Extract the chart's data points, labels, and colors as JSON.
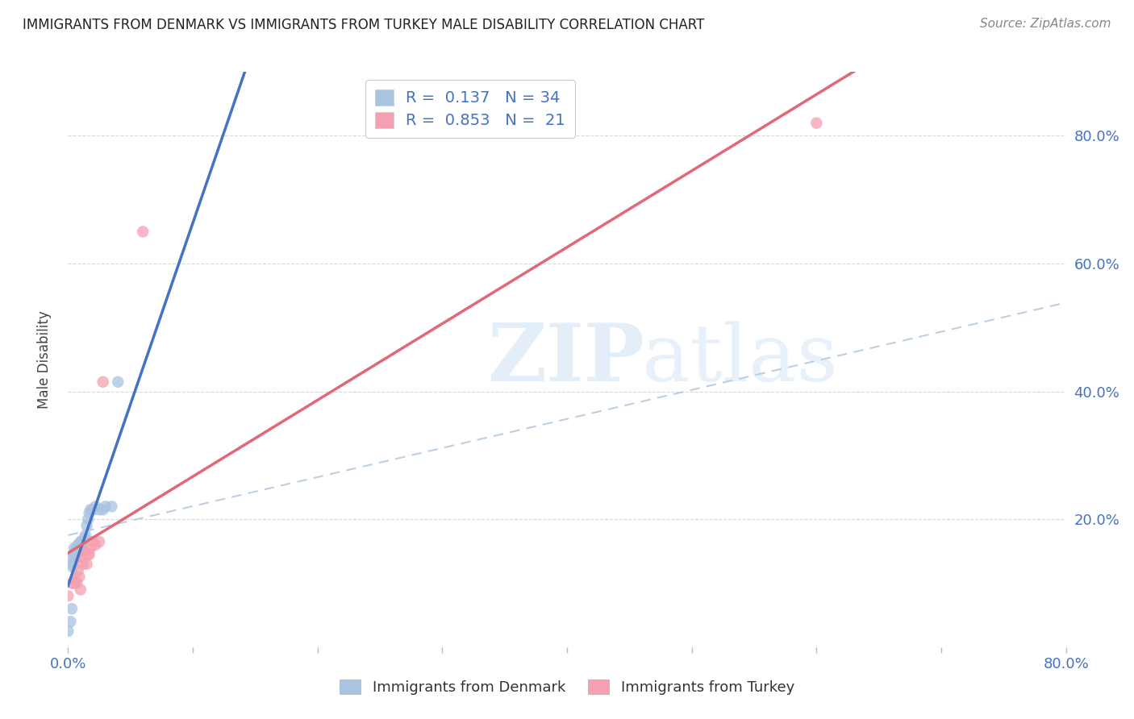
{
  "title": "IMMIGRANTS FROM DENMARK VS IMMIGRANTS FROM TURKEY MALE DISABILITY CORRELATION CHART",
  "source": "Source: ZipAtlas.com",
  "ylabel": "Male Disability",
  "xlim": [
    0.0,
    0.8
  ],
  "ylim": [
    0.0,
    0.9
  ],
  "denmark_color": "#a8c4e0",
  "turkey_color": "#f4a0b0",
  "denmark_line_color": "#4472c4",
  "turkey_line_color": "#e06878",
  "dash_line_color": "#b0c8e0",
  "denmark_R": 0.137,
  "denmark_N": 34,
  "turkey_R": 0.853,
  "turkey_N": 21,
  "background_color": "#ffffff",
  "grid_color": "#d8d8d8",
  "denmark_x": [
    0.0,
    0.002,
    0.003,
    0.004,
    0.005,
    0.005,
    0.006,
    0.006,
    0.007,
    0.007,
    0.008,
    0.008,
    0.009,
    0.009,
    0.01,
    0.01,
    0.011,
    0.011,
    0.012,
    0.013,
    0.014,
    0.015,
    0.016,
    0.017,
    0.018,
    0.02,
    0.022,
    0.025,
    0.028,
    0.03,
    0.035,
    0.04,
    0.002,
    0.003
  ],
  "denmark_y": [
    0.025,
    0.14,
    0.13,
    0.125,
    0.155,
    0.145,
    0.15,
    0.14,
    0.155,
    0.145,
    0.16,
    0.15,
    0.16,
    0.15,
    0.165,
    0.155,
    0.165,
    0.155,
    0.165,
    0.17,
    0.175,
    0.19,
    0.2,
    0.21,
    0.215,
    0.215,
    0.22,
    0.215,
    0.215,
    0.22,
    0.22,
    0.415,
    0.04,
    0.06
  ],
  "turkey_x": [
    0.0,
    0.003,
    0.005,
    0.006,
    0.007,
    0.008,
    0.009,
    0.01,
    0.011,
    0.012,
    0.013,
    0.015,
    0.016,
    0.017,
    0.018,
    0.02,
    0.022,
    0.025,
    0.028,
    0.06,
    0.6
  ],
  "turkey_y": [
    0.08,
    0.1,
    0.1,
    0.105,
    0.1,
    0.12,
    0.11,
    0.09,
    0.14,
    0.13,
    0.15,
    0.13,
    0.145,
    0.145,
    0.155,
    0.165,
    0.16,
    0.165,
    0.415,
    0.65,
    0.82
  ]
}
